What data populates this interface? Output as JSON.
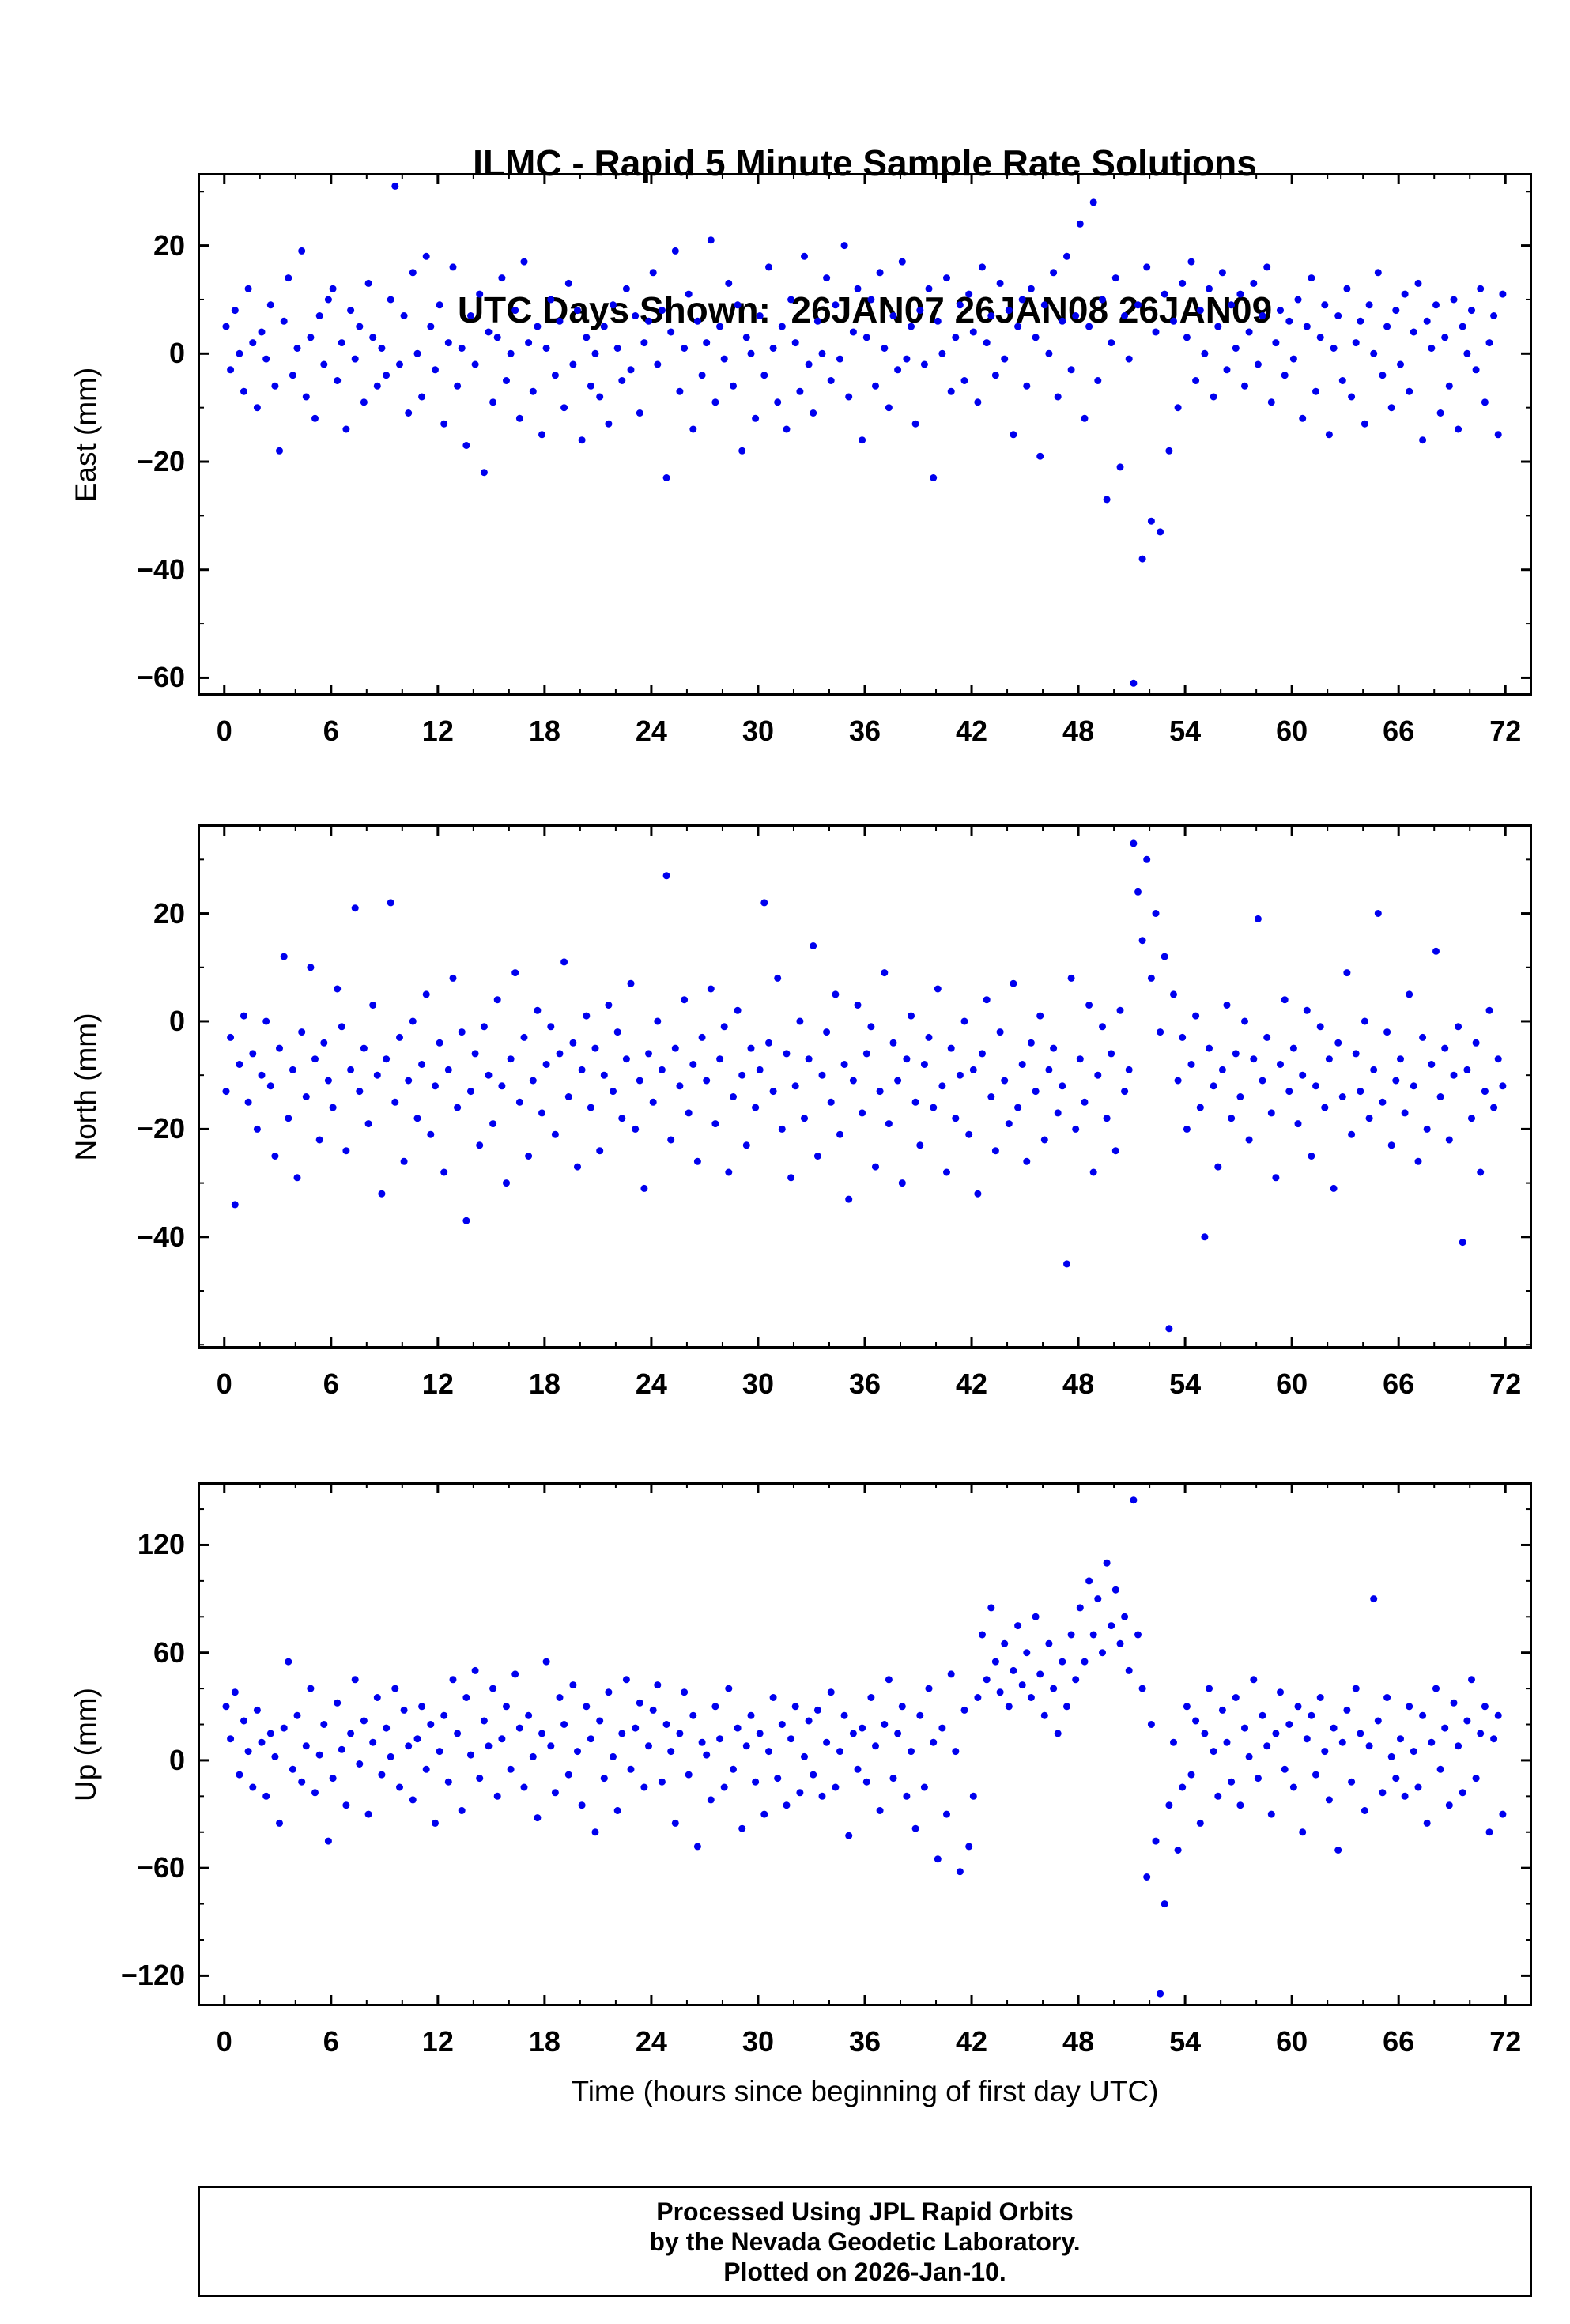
{
  "title": {
    "line1": "ILMC - Rapid 5 Minute Sample Rate Solutions",
    "line2": "UTC Days Shown:  26JAN07 26JAN08 26JAN09"
  },
  "xaxis": {
    "label": "Time (hours since beginning of first day UTC)",
    "lim": [
      -1.5,
      73.5
    ],
    "ticks": [
      0,
      6,
      12,
      18,
      24,
      30,
      36,
      42,
      48,
      54,
      60,
      66,
      72
    ],
    "minor_step": 2,
    "unit": "hours"
  },
  "footer": {
    "line1": "Processed Using JPL Rapid Orbits",
    "line2": "by the Nevada Geodetic Laboratory.",
    "line3": "Plotted on 2026-Jan-10."
  },
  "style": {
    "point_color": "#0000ee",
    "point_radius": 4.5,
    "frame_color": "#000000"
  },
  "chart_data": [
    {
      "type": "scatter",
      "name": "east",
      "ylabel": "East (mm)",
      "ylim": [
        -63.3,
        33.4
      ],
      "yticks": [
        20,
        0,
        -20,
        -40,
        -60
      ],
      "y_minor_step": 10,
      "x_start": 0.1,
      "x_step": 0.25,
      "y": [
        5,
        -3,
        8,
        0,
        -7,
        12,
        2,
        -10,
        4,
        -1,
        9,
        -6,
        -18,
        6,
        14,
        -4,
        1,
        19,
        -8,
        3,
        -12,
        7,
        -2,
        10,
        12,
        -5,
        2,
        -14,
        8,
        -1,
        5,
        -9,
        13,
        3,
        -6,
        1,
        -4,
        10,
        31,
        -2,
        7,
        -11,
        15,
        0,
        -8,
        18,
        5,
        -3,
        9,
        -13,
        2,
        16,
        -6,
        1,
        -17,
        7,
        -2,
        11,
        -22,
        4,
        -9,
        3,
        14,
        -5,
        0,
        8,
        -12,
        17,
        2,
        -7,
        5,
        -15,
        1,
        10,
        -4,
        6,
        -10,
        13,
        -2,
        8,
        -16,
        3,
        -6,
        0,
        -8,
        5,
        -13,
        9,
        1,
        -5,
        12,
        -3,
        7,
        -11,
        2,
        6,
        15,
        -2,
        8,
        -23,
        4,
        19,
        -7,
        1,
        11,
        -14,
        6,
        -4,
        2,
        21,
        -9,
        5,
        -1,
        13,
        -6,
        9,
        -18,
        3,
        0,
        -12,
        7,
        -4,
        16,
        1,
        -9,
        5,
        -14,
        10,
        2,
        -7,
        18,
        -2,
        -11,
        6,
        0,
        14,
        -5,
        9,
        -1,
        20,
        -8,
        4,
        12,
        -16,
        3,
        10,
        -6,
        15,
        1,
        -10,
        7,
        -3,
        17,
        -1,
        5,
        -13,
        8,
        -2,
        12,
        -23,
        6,
        0,
        14,
        -7,
        3,
        9,
        -5,
        11,
        4,
        -9,
        16,
        2,
        7,
        -4,
        13,
        -1,
        8,
        -15,
        5,
        10,
        -6,
        12,
        3,
        -19,
        9,
        0,
        15,
        -8,
        6,
        18,
        -3,
        7,
        24,
        -12,
        5,
        28,
        -5,
        10,
        -27,
        2,
        14,
        -21,
        7,
        -1,
        -61,
        9,
        -38,
        16,
        -31,
        4,
        -33,
        11,
        -18,
        6,
        -10,
        13,
        3,
        17,
        -5,
        8,
        0,
        12,
        -8,
        5,
        15,
        -3,
        9,
        1,
        11,
        -6,
        4,
        13,
        -2,
        7,
        16,
        -9,
        2,
        8,
        -4,
        6,
        -1,
        10,
        -12,
        5,
        14,
        -7,
        3,
        9,
        -15,
        1,
        7,
        -5,
        12,
        -8,
        2,
        6,
        -13,
        9,
        0,
        15,
        -4,
        5,
        -10,
        8,
        -2,
        11,
        -7,
        4,
        13,
        -16,
        6,
        1,
        9,
        -11,
        3,
        -6,
        10,
        -14,
        5,
        0,
        8,
        -3,
        12,
        -9,
        2,
        7,
        -15,
        11
      ]
    },
    {
      "type": "scatter",
      "name": "north",
      "ylabel": "North (mm)",
      "ylim": [
        -60.7,
        36.5
      ],
      "yticks": [
        20,
        0,
        -20,
        -40
      ],
      "y_minor_step": 10,
      "x_start": 0.1,
      "x_step": 0.25,
      "y": [
        -13,
        -3,
        -34,
        -8,
        1,
        -15,
        -6,
        -20,
        -10,
        0,
        -12,
        -25,
        -5,
        12,
        -18,
        -9,
        -29,
        -2,
        -14,
        10,
        -7,
        -22,
        -4,
        -11,
        -16,
        6,
        -1,
        -24,
        -9,
        21,
        -13,
        -5,
        -19,
        3,
        -10,
        -32,
        -7,
        22,
        -15,
        -3,
        -26,
        -11,
        0,
        -18,
        -8,
        5,
        -21,
        -12,
        -4,
        -28,
        -9,
        8,
        -16,
        -2,
        -37,
        -13,
        -6,
        -23,
        -1,
        -10,
        -19,
        4,
        -12,
        -30,
        -7,
        9,
        -15,
        -3,
        -25,
        -11,
        2,
        -17,
        -8,
        -1,
        -21,
        -6,
        11,
        -14,
        -4,
        -27,
        -9,
        1,
        -16,
        -5,
        -24,
        -10,
        3,
        -13,
        -2,
        -18,
        -7,
        7,
        -20,
        -11,
        -31,
        -6,
        -15,
        0,
        -9,
        27,
        -22,
        -5,
        -12,
        4,
        -17,
        -8,
        -26,
        -3,
        -11,
        6,
        -19,
        -7,
        -1,
        -28,
        -14,
        2,
        -10,
        -23,
        -5,
        -16,
        -9,
        22,
        -4,
        -13,
        8,
        -20,
        -6,
        -29,
        -12,
        0,
        -18,
        -7,
        14,
        -25,
        -10,
        -2,
        -15,
        5,
        -21,
        -8,
        -33,
        -11,
        3,
        -17,
        -6,
        -1,
        -27,
        -13,
        9,
        -19,
        -4,
        -11,
        -30,
        -7,
        1,
        -15,
        -23,
        -8,
        -3,
        -16,
        6,
        -12,
        -28,
        -5,
        -18,
        -10,
        0,
        -21,
        -9,
        -32,
        -6,
        4,
        -14,
        -24,
        -2,
        -11,
        -19,
        7,
        -16,
        -8,
        -26,
        -4,
        -13,
        1,
        -22,
        -9,
        -5,
        -17,
        -12,
        -45,
        8,
        -20,
        -7,
        -15,
        3,
        -28,
        -10,
        -1,
        -18,
        -6,
        -24,
        2,
        -13,
        -9,
        33,
        24,
        15,
        30,
        8,
        20,
        -2,
        12,
        -57,
        5,
        -11,
        -3,
        -20,
        -8,
        1,
        -16,
        -40,
        -5,
        -12,
        -27,
        -9,
        3,
        -18,
        -6,
        -14,
        0,
        -22,
        -7,
        19,
        -11,
        -3,
        -17,
        -29,
        -8,
        4,
        -13,
        -5,
        -19,
        -10,
        2,
        -25,
        -12,
        -1,
        -16,
        -7,
        -31,
        -4,
        -14,
        9,
        -21,
        -6,
        -13,
        0,
        -18,
        -9,
        20,
        -15,
        -2,
        -23,
        -11,
        -7,
        -17,
        5,
        -12,
        -26,
        -3,
        -20,
        -8,
        13,
        -14,
        -5,
        -22,
        -10,
        -1,
        -41,
        -9,
        -18,
        -4,
        -28,
        -13,
        2,
        -16,
        -7,
        -12
      ]
    },
    {
      "type": "scatter",
      "name": "up",
      "ylabel": "Up (mm)",
      "ylim": [
        -137,
        155
      ],
      "yticks": [
        120,
        60,
        0,
        -60,
        -120
      ],
      "y_minor_step": 20,
      "x_start": 0.1,
      "x_step": 0.25,
      "y": [
        30,
        12,
        38,
        -8,
        22,
        5,
        -15,
        28,
        10,
        -20,
        15,
        2,
        -35,
        18,
        55,
        -5,
        25,
        -12,
        8,
        40,
        -18,
        3,
        20,
        -45,
        -10,
        32,
        6,
        -25,
        15,
        45,
        -2,
        22,
        -30,
        10,
        35,
        -8,
        18,
        2,
        40,
        -15,
        28,
        8,
        -22,
        12,
        30,
        -5,
        20,
        -35,
        5,
        25,
        -12,
        45,
        15,
        -28,
        35,
        3,
        50,
        -10,
        22,
        8,
        40,
        -20,
        12,
        30,
        -5,
        48,
        18,
        -15,
        25,
        2,
        -32,
        15,
        55,
        8,
        -18,
        35,
        20,
        -8,
        42,
        5,
        -25,
        30,
        12,
        -40,
        22,
        -10,
        38,
        2,
        -28,
        15,
        45,
        -5,
        18,
        32,
        -15,
        8,
        28,
        42,
        -12,
        20,
        5,
        -35,
        15,
        38,
        -8,
        25,
        -48,
        10,
        3,
        -22,
        30,
        12,
        -15,
        40,
        -5,
        18,
        -38,
        8,
        25,
        -12,
        15,
        -30,
        5,
        35,
        -10,
        20,
        -25,
        12,
        30,
        -18,
        2,
        22,
        -8,
        28,
        -20,
        10,
        38,
        -15,
        5,
        25,
        -42,
        15,
        -5,
        18,
        -12,
        35,
        8,
        -28,
        20,
        45,
        -10,
        15,
        30,
        -20,
        5,
        -38,
        25,
        -15,
        40,
        10,
        -55,
        18,
        -30,
        48,
        5,
        -62,
        28,
        -48,
        -20,
        35,
        70,
        45,
        85,
        55,
        38,
        65,
        30,
        50,
        75,
        42,
        60,
        35,
        80,
        48,
        25,
        65,
        40,
        15,
        55,
        30,
        70,
        45,
        85,
        55,
        100,
        70,
        90,
        60,
        110,
        75,
        95,
        65,
        80,
        50,
        145,
        70,
        40,
        -65,
        20,
        -45,
        -130,
        -80,
        -25,
        10,
        -50,
        -15,
        30,
        -8,
        22,
        -35,
        15,
        40,
        5,
        -20,
        28,
        10,
        -12,
        35,
        -25,
        18,
        2,
        45,
        -10,
        25,
        8,
        -30,
        15,
        38,
        -5,
        20,
        -15,
        30,
        -40,
        12,
        25,
        -8,
        35,
        5,
        -22,
        18,
        -50,
        10,
        28,
        -12,
        40,
        15,
        -28,
        8,
        90,
        22,
        -18,
        35,
        2,
        -10,
        12,
        -20,
        30,
        5,
        -15,
        25,
        -35,
        10,
        40,
        -5,
        18,
        -25,
        32,
        8,
        -18,
        22,
        45,
        -10,
        15,
        30,
        -40,
        12,
        25,
        -30
      ]
    }
  ]
}
